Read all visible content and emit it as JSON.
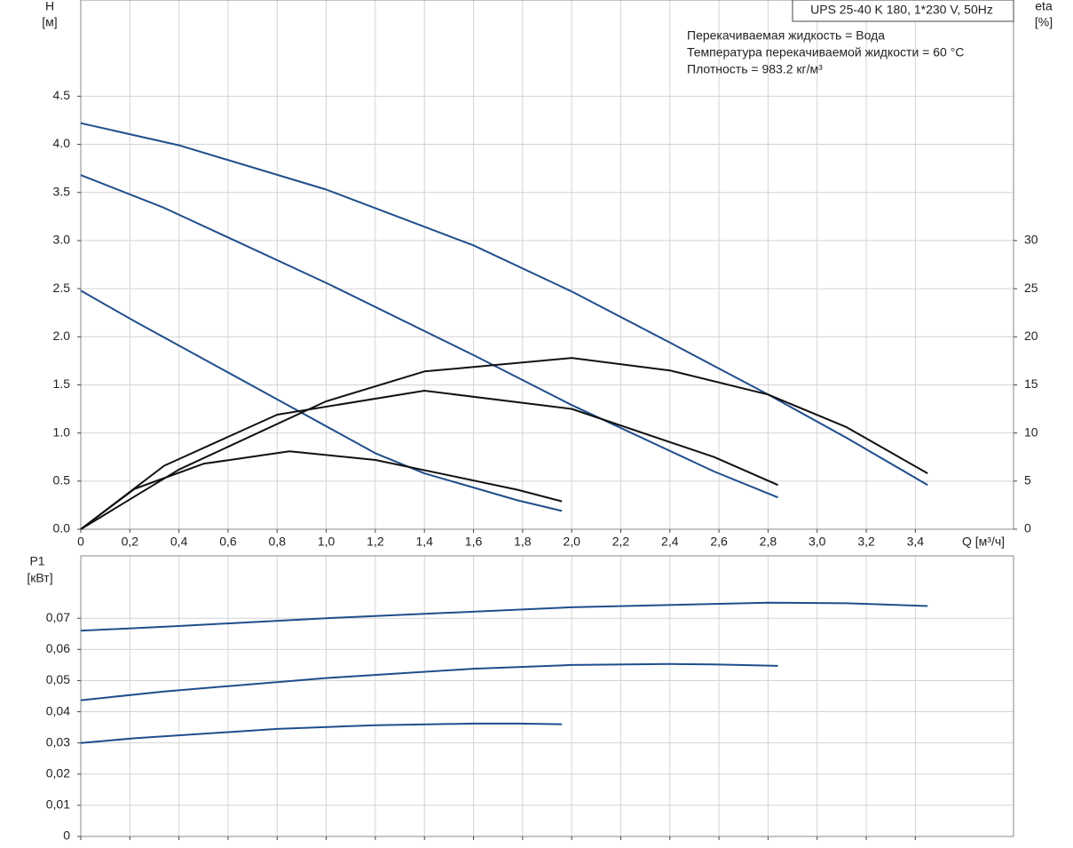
{
  "chart_data": [
    {
      "type": "line",
      "title": "UPS 25-40 K 180, 1*230 V, 50Hz",
      "annotations": [
        "Перекачиваемая жидкость = Вода",
        "Температура перекачиваемой жидкости = 60 °C",
        "Плотность = 983.2 кг/м³"
      ],
      "y_label": "H",
      "y_unit": "[м]",
      "y2_label": "eta",
      "y2_unit": "[%]",
      "x_label": "Q [м³/ч]",
      "xlim": [
        0,
        3.8
      ],
      "xticks": [
        0,
        {
          "value": 0.2,
          "label": "0,2"
        },
        {
          "value": 0.4,
          "label": "0,4"
        },
        {
          "value": 0.6,
          "label": "0,6"
        },
        {
          "value": 0.8,
          "label": "0,8"
        },
        {
          "value": 1.0,
          "label": "1,0"
        },
        {
          "value": 1.2,
          "label": "1,2"
        },
        {
          "value": 1.4,
          "label": "1,4"
        },
        {
          "value": 1.6,
          "label": "1,6"
        },
        {
          "value": 1.8,
          "label": "1,8"
        },
        {
          "value": 2.0,
          "label": "2,0"
        },
        {
          "value": 2.2,
          "label": "2,2"
        },
        {
          "value": 2.4,
          "label": "2,4"
        },
        {
          "value": 2.6,
          "label": "2,6"
        },
        {
          "value": 2.8,
          "label": "2,8"
        },
        {
          "value": 3.0,
          "label": "3,0"
        },
        {
          "value": 3.2,
          "label": "3,2"
        },
        {
          "value": 3.4,
          "label": "3,4"
        }
      ],
      "ylim": [
        0,
        5.5
      ],
      "yticks": [
        {
          "value": 0,
          "label": "0.0"
        },
        0.5,
        {
          "value": 1,
          "label": "1.0"
        },
        1.5,
        {
          "value": 2,
          "label": "2.0"
        },
        2.5,
        {
          "value": 3,
          "label": "3.0"
        },
        3.5,
        {
          "value": 4,
          "label": "4.0"
        },
        4.5
      ],
      "y2lim": [
        0,
        55
      ],
      "y2ticks": [
        0,
        5,
        10,
        15,
        20,
        25,
        30
      ],
      "grid": true,
      "series": [
        {
          "color": "#1f4e8c",
          "x": [
            0,
            0.4,
            1.0,
            1.6,
            2.0,
            2.4,
            2.8,
            3.12,
            3.45
          ],
          "values": [
            4.22,
            3.99,
            3.53,
            2.95,
            2.47,
            1.94,
            1.4,
            0.95,
            0.46
          ]
        },
        {
          "color": "#1f4e8c",
          "x": [
            0,
            0.34,
            1.0,
            1.6,
            2.0,
            2.58,
            2.84
          ],
          "values": [
            3.68,
            3.34,
            2.56,
            1.81,
            1.29,
            0.6,
            0.33
          ]
        },
        {
          "color": "#1f4e8c",
          "x": [
            0,
            0.22,
            0.8,
            1.2,
            1.4,
            1.78,
            1.96
          ],
          "values": [
            2.48,
            2.16,
            1.35,
            0.79,
            0.58,
            0.3,
            0.19
          ]
        },
        {
          "color": "#111111",
          "axis": "y2",
          "x": [
            0,
            0.4,
            1.0,
            1.4,
            2.0,
            2.4,
            2.8,
            3.12,
            3.45
          ],
          "values": [
            0,
            6.2,
            13.3,
            16.4,
            17.8,
            16.5,
            14.0,
            10.6,
            5.8
          ]
        },
        {
          "color": "#111111",
          "axis": "y2",
          "x": [
            0,
            0.34,
            0.8,
            1.4,
            2.0,
            2.58,
            2.84
          ],
          "values": [
            0,
            6.6,
            11.9,
            14.4,
            12.5,
            7.5,
            4.6
          ]
        },
        {
          "color": "#111111",
          "axis": "y2",
          "x": [
            0,
            0.22,
            0.5,
            0.85,
            1.2,
            1.5,
            1.78,
            1.96
          ],
          "values": [
            0,
            4.2,
            6.8,
            8.1,
            7.2,
            5.6,
            4.1,
            2.9
          ]
        }
      ]
    },
    {
      "type": "line",
      "y_label": "P1",
      "y_unit": "[кВт]",
      "xlim": [
        0,
        3.8
      ],
      "ylim": [
        0,
        0.09
      ],
      "yticks": [
        0,
        {
          "value": 0.01,
          "label": "0,01"
        },
        {
          "value": 0.02,
          "label": "0,02"
        },
        {
          "value": 0.03,
          "label": "0,03"
        },
        {
          "value": 0.04,
          "label": "0,04"
        },
        {
          "value": 0.05,
          "label": "0,05"
        },
        {
          "value": 0.06,
          "label": "0,06"
        },
        {
          "value": 0.07,
          "label": "0,07"
        }
      ],
      "grid": true,
      "series": [
        {
          "color": "#1f4e8c",
          "x": [
            0,
            0.4,
            1.0,
            2.0,
            2.8,
            3.12,
            3.45
          ],
          "values": [
            0.066,
            0.0675,
            0.07,
            0.0735,
            0.075,
            0.0748,
            0.0739
          ]
        },
        {
          "color": "#1f4e8c",
          "x": [
            0,
            0.34,
            1.0,
            1.6,
            2.0,
            2.4,
            2.58,
            2.84
          ],
          "values": [
            0.0437,
            0.0465,
            0.0508,
            0.0538,
            0.055,
            0.0553,
            0.0552,
            0.0547
          ]
        },
        {
          "color": "#1f4e8c",
          "x": [
            0,
            0.22,
            0.8,
            1.2,
            1.6,
            1.78,
            1.96
          ],
          "values": [
            0.03,
            0.0315,
            0.0345,
            0.0357,
            0.0362,
            0.0362,
            0.036
          ]
        }
      ]
    }
  ]
}
